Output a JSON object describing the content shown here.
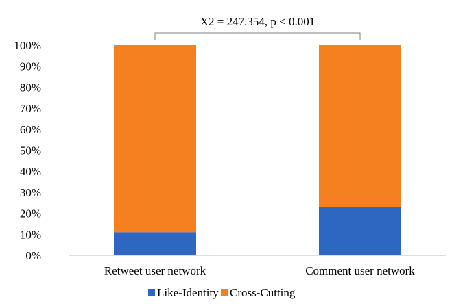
{
  "chart_data": {
    "type": "bar",
    "stacked": true,
    "percent_stacked": true,
    "categories": [
      "Retweet user network",
      "Comment user network"
    ],
    "series": [
      {
        "name": "Like-Identity",
        "color": "#2e67c1",
        "values": [
          11,
          23
        ]
      },
      {
        "name": "Cross-Cutting",
        "color": "#f5801f",
        "values": [
          89,
          77
        ]
      }
    ],
    "yticks": [
      "0%",
      "10%",
      "20%",
      "30%",
      "40%",
      "50%",
      "60%",
      "70%",
      "80%",
      "90%",
      "100%"
    ],
    "ylim": [
      0,
      100
    ],
    "grid": false,
    "legend": {
      "position": "bottom"
    },
    "annotation": {
      "text": "X2 = 247.354, p < 0.001",
      "between": [
        "Retweet user network",
        "Comment user network"
      ]
    },
    "title": "",
    "xlabel": "",
    "ylabel": ""
  }
}
